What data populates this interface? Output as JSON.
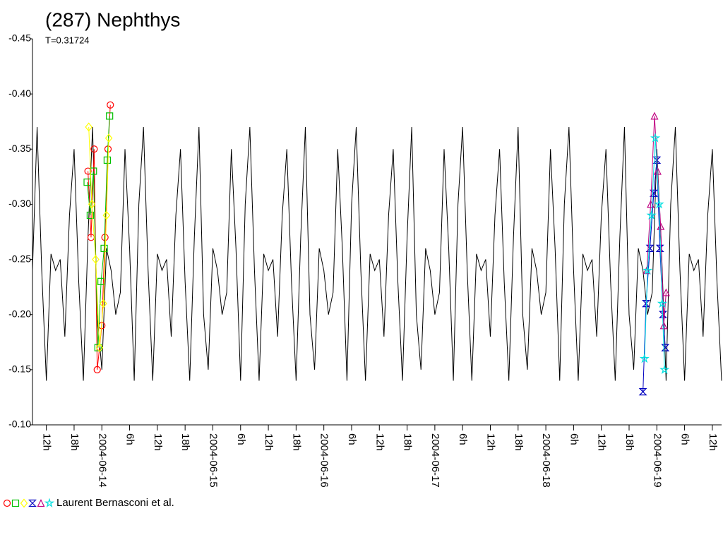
{
  "chart_data": {
    "type": "lightcurve",
    "title": "(287) Nephthys",
    "subtitle": "T=0.31724",
    "ylim": [
      -0.45,
      -0.1
    ],
    "y_reversed": true,
    "yticks": [
      -0.45,
      {
        "value": -0.4,
        "label": "-0.40"
      },
      -0.35,
      {
        "value": -0.3,
        "label": "-0.30"
      },
      -0.25,
      {
        "value": -0.2,
        "label": "-0.20"
      },
      -0.15,
      {
        "value": -0.1,
        "label": "-0.10"
      }
    ],
    "xlim": [
      "2004-06-13T09:00",
      "2004-06-19T14:00"
    ],
    "xticks": [
      {
        "value": "2004-06-13T12:00",
        "label": "12h"
      },
      {
        "value": "2004-06-13T18:00",
        "label": "18h"
      },
      {
        "value": "2004-06-14T00:00",
        "label": "2004-06-14"
      },
      {
        "value": "2004-06-14T06:00",
        "label": "6h"
      },
      {
        "value": "2004-06-14T12:00",
        "label": "12h"
      },
      {
        "value": "2004-06-14T18:00",
        "label": "18h"
      },
      {
        "value": "2004-06-15T00:00",
        "label": "2004-06-15"
      },
      {
        "value": "2004-06-15T06:00",
        "label": "6h"
      },
      {
        "value": "2004-06-15T12:00",
        "label": "12h"
      },
      {
        "value": "2004-06-15T18:00",
        "label": "18h"
      },
      {
        "value": "2004-06-16T00:00",
        "label": "2004-06-16"
      },
      {
        "value": "2004-06-16T06:00",
        "label": "6h"
      },
      {
        "value": "2004-06-16T12:00",
        "label": "12h"
      },
      {
        "value": "2004-06-16T18:00",
        "label": "18h"
      },
      {
        "value": "2004-06-17T00:00",
        "label": "2004-06-17"
      },
      {
        "value": "2004-06-17T06:00",
        "label": "6h"
      },
      {
        "value": "2004-06-17T12:00",
        "label": "12h"
      },
      {
        "value": "2004-06-17T18:00",
        "label": "18h"
      },
      {
        "value": "2004-06-18T00:00",
        "label": "2004-06-18"
      },
      {
        "value": "2004-06-18T06:00",
        "label": "6h"
      },
      {
        "value": "2004-06-18T12:00",
        "label": "12h"
      },
      {
        "value": "2004-06-18T18:00",
        "label": "18h"
      },
      {
        "value": "2004-06-19T00:00",
        "label": "2004-06-19"
      },
      {
        "value": "2004-06-19T06:00",
        "label": "6h"
      },
      {
        "value": "2004-06-19T12:00",
        "label": "12h"
      }
    ],
    "model": {
      "color": "#000000",
      "x": [
        "2004-06-13T09:00",
        "2004-06-13T10:00",
        "2004-06-13T11:00",
        "2004-06-13T12:00",
        "2004-06-13T13:00",
        "2004-06-13T14:00",
        "2004-06-13T15:00",
        "2004-06-13T16:00",
        "2004-06-13T17:00",
        "2004-06-13T18:00",
        "2004-06-13T19:00",
        "2004-06-13T20:00",
        "2004-06-13T21:00",
        "2004-06-13T22:00",
        "2004-06-13T23:00",
        "2004-06-14T00:00",
        "2004-06-14T01:00",
        "2004-06-14T02:00",
        "2004-06-14T03:00",
        "2004-06-14T04:00",
        "2004-06-14T05:00",
        "2004-06-14T06:00",
        "2004-06-14T07:00",
        "2004-06-14T08:00",
        "2004-06-14T09:00",
        "2004-06-14T10:00",
        "2004-06-14T11:00",
        "2004-06-14T12:00",
        "2004-06-14T13:00",
        "2004-06-14T14:00",
        "2004-06-14T15:00",
        "2004-06-14T16:00",
        "2004-06-14T17:00",
        "2004-06-14T18:00",
        "2004-06-14T19:00",
        "2004-06-14T20:00",
        "2004-06-14T21:00",
        "2004-06-14T22:00",
        "2004-06-14T23:00",
        "2004-06-15T00:00",
        "2004-06-15T01:00",
        "2004-06-15T02:00",
        "2004-06-15T03:00",
        "2004-06-15T04:00",
        "2004-06-15T05:00",
        "2004-06-15T06:00",
        "2004-06-15T07:00",
        "2004-06-15T08:00",
        "2004-06-15T09:00",
        "2004-06-15T10:00",
        "2004-06-15T11:00",
        "2004-06-15T12:00",
        "2004-06-15T13:00",
        "2004-06-15T14:00",
        "2004-06-15T15:00",
        "2004-06-15T16:00",
        "2004-06-15T17:00",
        "2004-06-15T18:00",
        "2004-06-15T19:00",
        "2004-06-15T20:00",
        "2004-06-15T21:00",
        "2004-06-15T22:00",
        "2004-06-15T23:00",
        "2004-06-16T00:00",
        "2004-06-16T01:00",
        "2004-06-16T02:00",
        "2004-06-16T03:00",
        "2004-06-16T04:00",
        "2004-06-16T05:00",
        "2004-06-16T06:00",
        "2004-06-16T07:00",
        "2004-06-16T08:00",
        "2004-06-16T09:00",
        "2004-06-16T10:00",
        "2004-06-16T11:00",
        "2004-06-16T12:00",
        "2004-06-16T13:00",
        "2004-06-16T14:00",
        "2004-06-16T15:00",
        "2004-06-16T16:00",
        "2004-06-16T17:00",
        "2004-06-16T18:00",
        "2004-06-16T19:00",
        "2004-06-16T20:00",
        "2004-06-16T21:00",
        "2004-06-16T22:00",
        "2004-06-16T23:00",
        "2004-06-17T00:00",
        "2004-06-17T01:00",
        "2004-06-17T02:00",
        "2004-06-17T03:00",
        "2004-06-17T04:00",
        "2004-06-17T05:00",
        "2004-06-17T06:00",
        "2004-06-17T07:00",
        "2004-06-17T08:00",
        "2004-06-17T09:00",
        "2004-06-17T10:00",
        "2004-06-17T11:00",
        "2004-06-17T12:00",
        "2004-06-17T13:00",
        "2004-06-17T14:00",
        "2004-06-17T15:00",
        "2004-06-17T16:00",
        "2004-06-17T17:00",
        "2004-06-17T18:00",
        "2004-06-17T19:00",
        "2004-06-17T20:00",
        "2004-06-17T21:00",
        "2004-06-17T22:00",
        "2004-06-17T23:00",
        "2004-06-18T00:00",
        "2004-06-18T01:00",
        "2004-06-18T02:00",
        "2004-06-18T03:00",
        "2004-06-18T04:00",
        "2004-06-18T05:00",
        "2004-06-18T06:00",
        "2004-06-18T07:00",
        "2004-06-18T08:00",
        "2004-06-18T09:00",
        "2004-06-18T10:00",
        "2004-06-18T11:00",
        "2004-06-18T12:00",
        "2004-06-18T13:00",
        "2004-06-18T14:00",
        "2004-06-18T15:00",
        "2004-06-18T16:00",
        "2004-06-18T17:00",
        "2004-06-18T18:00",
        "2004-06-18T19:00",
        "2004-06-18T20:00",
        "2004-06-18T21:00",
        "2004-06-18T22:00",
        "2004-06-18T23:00",
        "2004-06-19T00:00",
        "2004-06-19T01:00",
        "2004-06-19T02:00",
        "2004-06-19T03:00",
        "2004-06-19T04:00",
        "2004-06-19T05:00",
        "2004-06-19T06:00",
        "2004-06-19T07:00",
        "2004-06-19T08:00",
        "2004-06-19T09:00",
        "2004-06-19T10:00",
        "2004-06-19T11:00",
        "2004-06-19T12:00",
        "2004-06-19T13:00",
        "2004-06-19T14:00"
      ],
      "values": [
        -0.24,
        -0.37,
        -0.24,
        -0.14,
        -0.255,
        -0.24,
        -0.25,
        -0.18,
        -0.29,
        -0.35,
        -0.23,
        -0.14,
        -0.27,
        -0.37,
        -0.2,
        -0.15,
        -0.26,
        -0.24,
        -0.2,
        -0.22,
        -0.35,
        -0.26,
        -0.14,
        -0.3,
        -0.37,
        -0.24,
        -0.14,
        -0.255,
        -0.24,
        -0.25,
        -0.18,
        -0.29,
        -0.35,
        -0.23,
        -0.14,
        -0.27,
        -0.37,
        -0.2,
        -0.15,
        -0.26,
        -0.24,
        -0.2,
        -0.22,
        -0.35,
        -0.26,
        -0.14,
        -0.3,
        -0.37,
        -0.24,
        -0.14,
        -0.255,
        -0.24,
        -0.25,
        -0.18,
        -0.29,
        -0.35,
        -0.23,
        -0.14,
        -0.27,
        -0.37,
        -0.2,
        -0.15,
        -0.26,
        -0.24,
        -0.2,
        -0.22,
        -0.35,
        -0.26,
        -0.14,
        -0.3,
        -0.37,
        -0.24,
        -0.14,
        -0.255,
        -0.24,
        -0.25,
        -0.18,
        -0.29,
        -0.35,
        -0.23,
        -0.14,
        -0.27,
        -0.37,
        -0.2,
        -0.15,
        -0.26,
        -0.24,
        -0.2,
        -0.22,
        -0.35,
        -0.26,
        -0.14,
        -0.3,
        -0.37,
        -0.24,
        -0.14,
        -0.255,
        -0.24,
        -0.25,
        -0.18,
        -0.29,
        -0.35,
        -0.23,
        -0.14,
        -0.27,
        -0.37,
        -0.2,
        -0.15,
        -0.26,
        -0.24,
        -0.2,
        -0.22,
        -0.35,
        -0.26,
        -0.14,
        -0.3,
        -0.37,
        -0.24,
        -0.14,
        -0.255,
        -0.24,
        -0.25,
        -0.18,
        -0.29,
        -0.35,
        -0.23,
        -0.14,
        -0.27,
        -0.37,
        -0.2,
        -0.15,
        -0.26,
        -0.24,
        -0.2,
        -0.22,
        -0.35,
        -0.26,
        -0.14,
        -0.3,
        -0.37,
        -0.24,
        -0.14,
        -0.255,
        -0.24,
        -0.25,
        -0.18,
        -0.29,
        -0.35,
        -0.23,
        -0.14
      ]
    },
    "observer": "Laurent Bernasconi et al.",
    "series": [
      {
        "color": "#ff0000",
        "marker": "circle",
        "x": [
          "2004-06-13T21:00",
          "2004-06-13T21:40",
          "2004-06-13T22:20",
          "2004-06-13T23:00",
          "2004-06-14T00:00",
          "2004-06-14T00:40",
          "2004-06-14T01:20",
          "2004-06-14T01:50"
        ],
        "values": [
          -0.33,
          -0.27,
          -0.35,
          -0.15,
          -0.19,
          -0.27,
          -0.35,
          -0.39
        ]
      },
      {
        "color": "#00c000",
        "marker": "square",
        "x": [
          "2004-06-13T20:50",
          "2004-06-13T21:30",
          "2004-06-13T22:10",
          "2004-06-13T23:10",
          "2004-06-13T23:50",
          "2004-06-14T00:30",
          "2004-06-14T01:10",
          "2004-06-14T01:40"
        ],
        "values": [
          -0.32,
          -0.29,
          -0.33,
          -0.17,
          -0.23,
          -0.26,
          -0.34,
          -0.38
        ]
      },
      {
        "color": "#ffff00",
        "marker": "diamond",
        "x": [
          "2004-06-13T21:10",
          "2004-06-13T21:50",
          "2004-06-13T22:40",
          "2004-06-13T23:30",
          "2004-06-14T00:20",
          "2004-06-14T01:00",
          "2004-06-14T01:30"
        ],
        "values": [
          -0.37,
          -0.3,
          -0.25,
          -0.17,
          -0.21,
          -0.29,
          -0.36
        ]
      },
      {
        "color": "#0000c0",
        "marker": "hourglass",
        "x": [
          "2004-06-18T21:00",
          "2004-06-18T21:40",
          "2004-06-18T22:30",
          "2004-06-18T23:20",
          "2004-06-19T00:00",
          "2004-06-19T00:40",
          "2004-06-19T01:20",
          "2004-06-19T01:50"
        ],
        "values": [
          -0.13,
          -0.21,
          -0.26,
          -0.31,
          -0.34,
          -0.26,
          -0.2,
          -0.17
        ]
      },
      {
        "color": "#c00080",
        "marker": "triangle",
        "x": [
          "2004-06-18T21:50",
          "2004-06-18T22:40",
          "2004-06-18T23:30",
          "2004-06-19T00:10",
          "2004-06-19T00:50",
          "2004-06-19T01:30",
          "2004-06-19T02:00"
        ],
        "values": [
          -0.24,
          -0.3,
          -0.38,
          -0.33,
          -0.28,
          -0.19,
          -0.22
        ]
      },
      {
        "color": "#00e0e0",
        "marker": "star",
        "x": [
          "2004-06-18T21:20",
          "2004-06-18T22:00",
          "2004-06-18T22:50",
          "2004-06-18T23:40",
          "2004-06-19T00:30",
          "2004-06-19T01:10",
          "2004-06-19T01:40"
        ],
        "values": [
          -0.16,
          -0.24,
          -0.29,
          -0.36,
          -0.3,
          -0.21,
          -0.15
        ]
      }
    ]
  }
}
